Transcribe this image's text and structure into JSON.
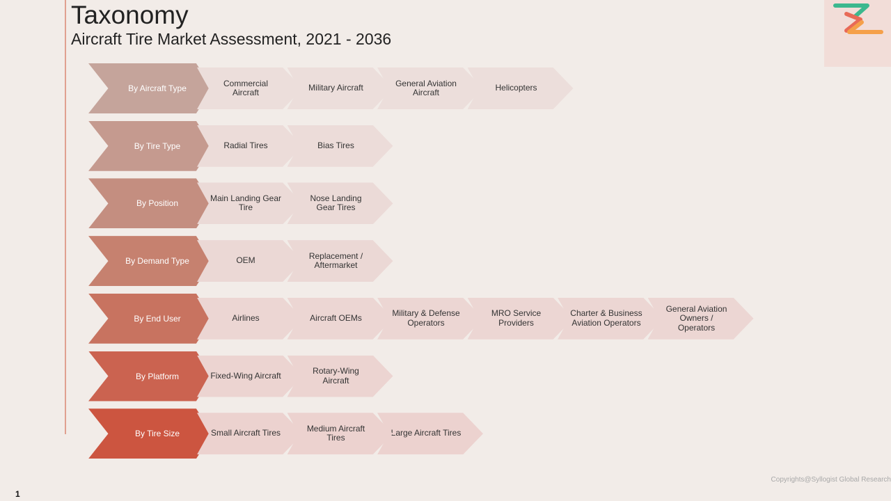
{
  "header": {
    "title": "Taxonomy",
    "subtitle": "Aircraft Tire Market Assessment, 2021 - 2036"
  },
  "logo": {
    "icon": "syllogist-s-logo-icon",
    "colors": [
      "#3cb88e",
      "#e86a57",
      "#f5a04a"
    ]
  },
  "taxonomy": {
    "rows": [
      {
        "category": "By Aircraft Type",
        "color": "#c5a49b",
        "item_color": "#ecdedb",
        "items": [
          "Commercial Aircraft",
          "Military Aircraft",
          "General Aviation Aircraft",
          "Helicopters"
        ]
      },
      {
        "category": "By Tire Type",
        "color": "#c59a8f",
        "item_color": "#ecdcd9",
        "items": [
          "Radial Tires",
          "Bias Tires"
        ]
      },
      {
        "category": "By Position",
        "color": "#c48e80",
        "item_color": "#ebdad7",
        "items": [
          "Main Landing Gear Tire",
          "Nose Landing Gear Tires"
        ]
      },
      {
        "category": "By Demand Type",
        "color": "#c6816f",
        "item_color": "#ebd8d5",
        "items": [
          "OEM",
          "Replacement / Aftermarket"
        ]
      },
      {
        "category": "By End User",
        "color": "#c87360",
        "item_color": "#ecd6d3",
        "items": [
          "Airlines",
          "Aircraft OEMs",
          "Military & Defense Operators",
          "MRO Service Providers",
          "Charter & Business Aviation Operators",
          "General Aviation Owners / Operators"
        ]
      },
      {
        "category": "By Platform",
        "color": "#cb6350",
        "item_color": "#ecd4d1",
        "items": [
          "Fixed-Wing Aircraft",
          "Rotary-Wing Aircraft"
        ]
      },
      {
        "category": "By Tire Size",
        "color": "#cc5540",
        "item_color": "#ecd2cf",
        "items": [
          "Small Aircraft Tires",
          "Medium Aircraft Tires",
          "Large Aircraft Tires"
        ]
      }
    ]
  },
  "footer": {
    "copyright": "Copyrights@Syllogist Global Research",
    "page_number": "1"
  }
}
